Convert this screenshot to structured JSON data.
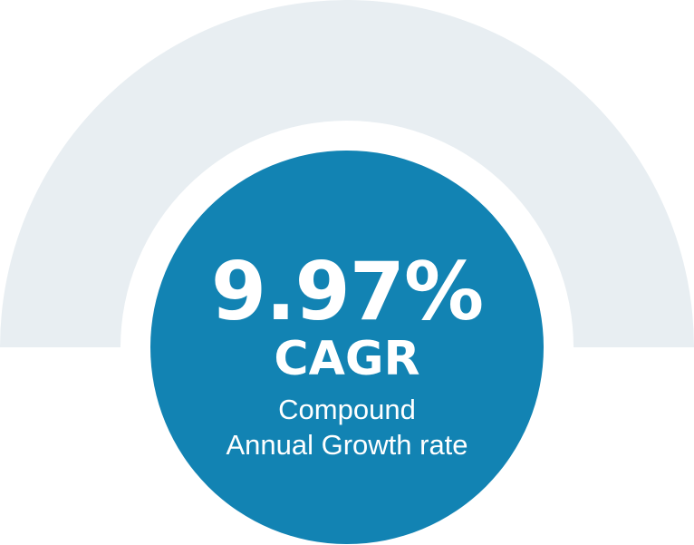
{
  "metric": {
    "value": "9.97%",
    "label": "CAGR",
    "description_line1": "Compound",
    "description_line2": "Annual Growth rate"
  },
  "colors": {
    "arc": "#e8eef2",
    "circle": "#1283b3",
    "text": "#ffffff"
  }
}
